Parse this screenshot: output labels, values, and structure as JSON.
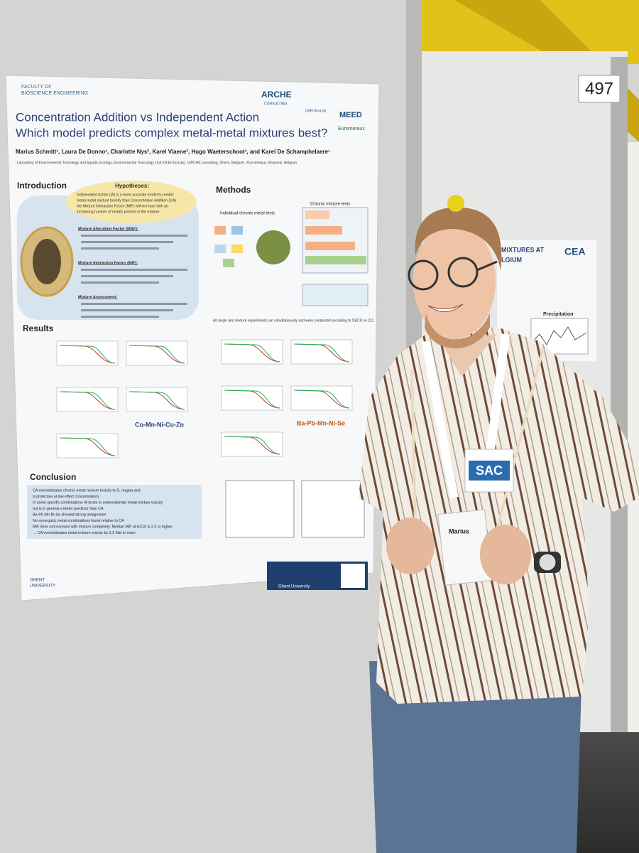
{
  "board_number": "497",
  "poster": {
    "faculty": [
      "FACULTY OF",
      "BIOSCIENCE ENGINEERING"
    ],
    "logos": [
      "ARCHE",
      "CONSULTING",
      "GhEnToxLab",
      "MEED",
      "Eurometaux"
    ],
    "title": [
      "Concentration Addition vs Independent Action",
      "Which model predicts complex metal-metal mixtures best?"
    ],
    "authors": "Marius Schmitt¹, Laura De Donno¹, Charlotte Nys², Karel Viaene², Hugo Waeterschoot³, and Karel De Schamphelaere¹",
    "affiliations": "¹Laboratory of Environmental Toxicology and Aquatic Ecology, Environmental Toxicology Unit (GhEnToxLab), ²ARCHE consulting, Ghent, Belgium, ³Eurometaux, Brussels, Belgium",
    "headings": {
      "introduction": "Introduction",
      "hypotheses": "Hypotheses:",
      "methods": "Methods",
      "results": "Results",
      "conclusion": "Conclusion"
    },
    "hypotheses": [
      "Independent Action (IA) is a more accurate model to predict",
      "metal-metal mixture toxicity than Concentration Addition (CA)",
      "the Mixture Interaction Factor (MIF) will increase with an",
      "increasing number of metals present in the mixture"
    ],
    "intro_items": [
      "Mixture Allocation Factor (MAF):",
      "Mixture Interaction Factor (MIF):",
      "Mixture Assessment:"
    ],
    "methods_sub": [
      "Individual chronic metal tests",
      "Chronic mixture tests"
    ],
    "methods_note": "All single and mixture experiments ran simultaneously and were conducted according to OECD no 211",
    "result_groups": [
      "Co-Mn-Ni-Cu-Zn",
      "Ba-Pb-Mn-Ni-Se"
    ],
    "conclusion": [
      "CA overestimates chronic metal mixture toxicity to D. magna and",
      "is protective at low effect concentrations",
      "In some specific combinations IA tends to underestimate metal-mixture toxicity",
      "but is in general a better predictor than CA",
      "Ba-Pb-Mn-Ni-Se showed strong antagonism",
      "No synergistic metal-combinations found relative to CA",
      "MIF does not increase with mixture complexity: Median MIF at EC10 is 2.3 or higher",
      "→ CA overestimates metal mixture toxicity by 2.3 fold or more"
    ],
    "footer": [
      "GHENT",
      "UNIVERSITY"
    ],
    "contact": "Ghent University"
  },
  "badge": {
    "org": "SAC",
    "name": "Marius"
  },
  "neighbor_poster": {
    "title": "MIXTURES AT",
    "subtitle": "LGIUM",
    "logo": "CEA",
    "heading": "Precipitation"
  }
}
